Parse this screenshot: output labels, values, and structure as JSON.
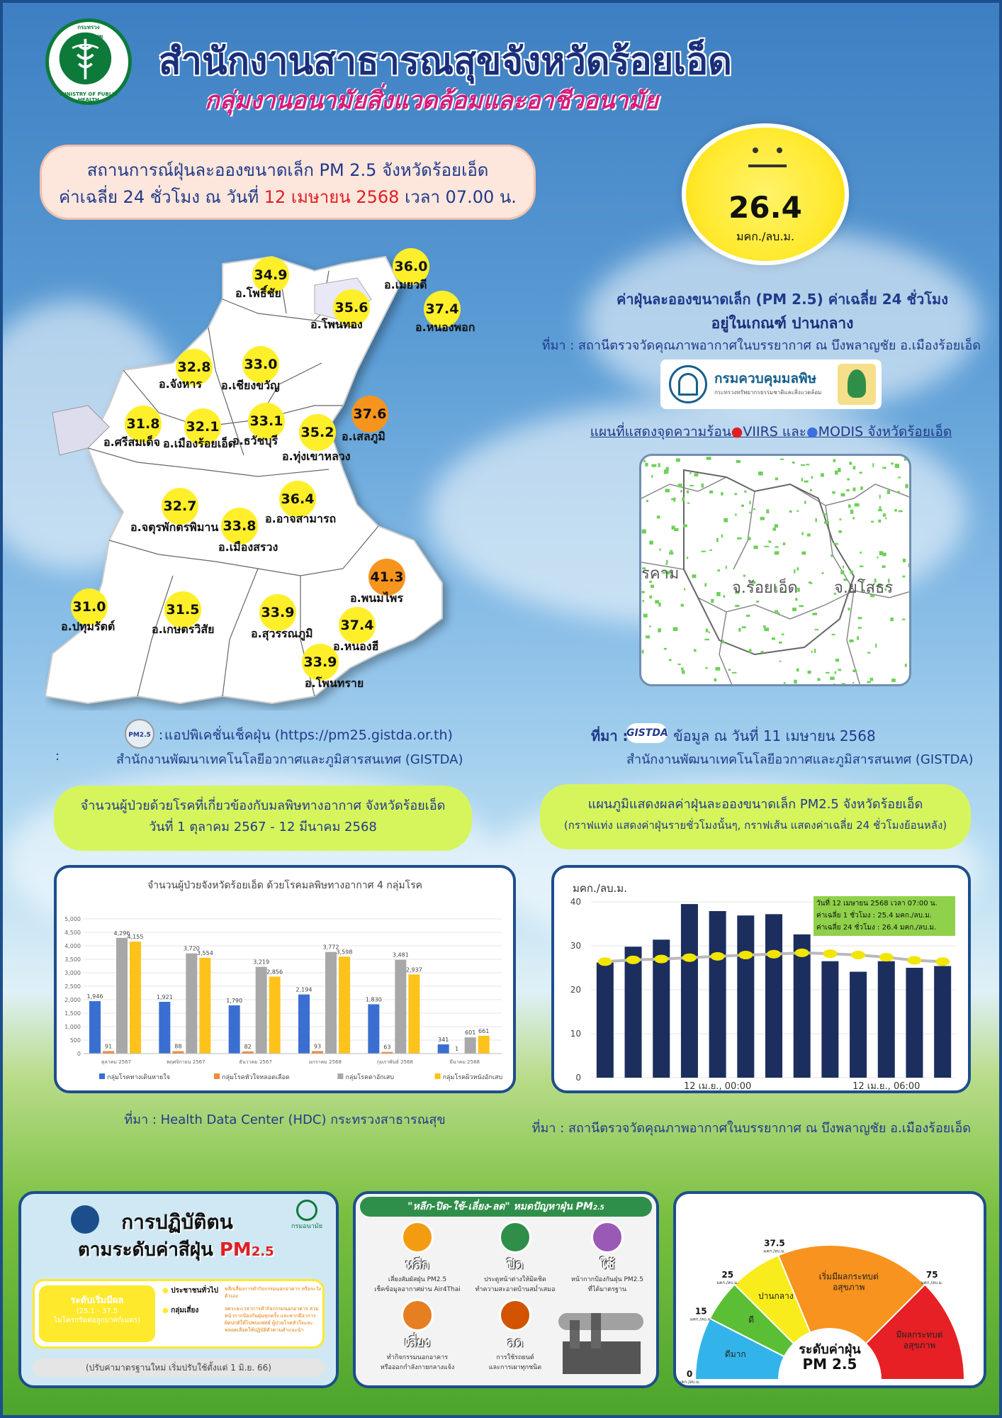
{
  "header": {
    "title": "สำนักงานสาธารณสุขจังหวัดร้อยเอ็ด",
    "subtitle": "กลุ่มงานอนามัยสิ่งแวดล้อมและอาชีวอนามัย",
    "logo_text_top": "กระทรวงสาธารณสุข",
    "logo_text_bottom": "MINISTRY OF PUBLIC HEALTH"
  },
  "status": {
    "line1": "สถานการณ์ฝุ่นละอองขนาดเล็ก PM 2.5 จังหวัดร้อยเอ็ด",
    "line2_pre": "ค่าเฉลี่ย 24 ชั่วโมง ณ วันที่ ",
    "line2_date": "12 เมษายน 2568",
    "line2_post": " เวลา 07.00 น."
  },
  "aqi": {
    "value": "26.4",
    "unit": "มคก./ลบ.ม.",
    "color": "#ffe92d"
  },
  "aqi_info": {
    "line1": "ค่าฝุ่นละอองขนาดเล็ก (PM 2.5) ค่าเฉลี่ย 24 ชั่วโมง",
    "line2": "อยู่ในเกณฑ์ ปานกลาง",
    "source": "ที่มา : สถานีตรวจวัดคุณภาพอากาศในบรรยากาศ ณ บึงพลาญชัย อ.เมืองร้อยเอ็ด",
    "pcd_name": "กรมควบคุมมลพิษ",
    "pcd_sub": "กระทรวงทรัพยากรธรรมชาติและสิ่งแวดล้อม",
    "pcd_logo_text": "กรมควบคุมมลพิษ"
  },
  "hotspot": {
    "title_pre": "แผนที่แสดงจุดความร้อน",
    "viirs": "VIIRS",
    "and": " และ",
    "modis": "MODIS",
    "title_post": " จังหวัดร้อยเอ็ด",
    "label_center": "จ.ร้อยเอ็ด",
    "label_right": "จ.ยโสธร",
    "label_left": "รคาม",
    "source_label": "ที่มา :",
    "source_logo": "GISTDA",
    "source_line1": "ข้อมูล ณ วันที่ 11 เมษายน 2568",
    "source_line2": "สำนักงานพัฒนาเทคโนโลยีอวกาศและภูมิสารสนเทศ (GISTDA)"
  },
  "map": {
    "districts": [
      {
        "value": "34.9",
        "name": "อ.โพธิ์ชัย",
        "level": "yellow"
      },
      {
        "value": "36.0",
        "name": "อ.เมยวดี",
        "level": "yellow"
      },
      {
        "value": "35.6",
        "name": "อ.โพนทอง",
        "level": "yellow"
      },
      {
        "value": "37.4",
        "name": "อ.หนองพอก",
        "level": "yellow"
      },
      {
        "value": "32.8",
        "name": "อ.จังหาร",
        "level": "yellow"
      },
      {
        "value": "33.0",
        "name": "อ.เชียงขวัญ",
        "level": "yellow"
      },
      {
        "value": "31.8",
        "name": "อ.ศรีสมเด็จ",
        "level": "yellow"
      },
      {
        "value": "32.1",
        "name": "อ.เมืองร้อยเอ็ด",
        "level": "yellow"
      },
      {
        "value": "33.1",
        "name": "อ.ธวัชบุรี",
        "level": "yellow"
      },
      {
        "value": "35.2",
        "name": "อ.ทุ่งเขาหลวง",
        "level": "yellow"
      },
      {
        "value": "37.6",
        "name": "อ.เสลภูมิ",
        "level": "orange"
      },
      {
        "value": "36.4",
        "name": "อ.อาจสามารถ",
        "level": "yellow"
      },
      {
        "value": "32.7",
        "name": "อ.จตุรพักตรพิมาน",
        "level": "yellow"
      },
      {
        "value": "33.8",
        "name": "อ.เมืองสรวง",
        "level": "yellow"
      },
      {
        "value": "41.3",
        "name": "อ.พนมไพร",
        "level": "orange"
      },
      {
        "value": "31.0",
        "name": "อ.ปทุมรัตต์",
        "level": "yellow"
      },
      {
        "value": "31.5",
        "name": "อ.เกษตรวิสัย",
        "level": "yellow"
      },
      {
        "value": "33.9",
        "name": "อ.สุวรรณภูมิ",
        "level": "yellow"
      },
      {
        "value": "37.4",
        "name": "อ.หนองฮี",
        "level": "yellow"
      },
      {
        "value": "33.9",
        "name": "อ.โพนทราย",
        "level": "yellow"
      }
    ],
    "source_label": "ที่มา :",
    "source_app": "แอปพิเคชั่นเช็คฝุ่น (https://pm25.gistda.or.th)",
    "source_org": "สำนักงานพัฒนาเทคโนโลยีอวกาศและภูมิสารสนเทศ (GISTDA)",
    "app_icon_text": "PM2.5",
    "colon": ":"
  },
  "patients_box": {
    "line1": "จำนวนผู้ป่วยด้วยโรคที่เกี่ยวข้องกับมลพิษทางอากาศ จังหวัดร้อยเอ็ด",
    "line2": "วันที่ 1 ตุลาคม 2567 - 12 มีนาคม 2568",
    "source": "ที่มา :  Health Data Center (HDC) กระทรวงสาธารณสุข"
  },
  "pm_box": {
    "line1": "แผนภูมิแสดงผลค่าฝุ่นละอองขนาดเล็ก PM2.5 จังหวัดร้อยเอ็ด",
    "line2": "(กราฟแท่ง แสดงค่าฝุ่นรายชั่วโมงนั้นๆ, กราฟเส้น แสดงค่าเฉลี่ย 24 ชั่วโมงย้อนหลัง)",
    "source": "ที่มา : สถานีตรวจวัดคุณภาพอากาศในบรรยากาศ ณ บึงพลาญชัย อ.เมืองร้อยเอ็ด"
  },
  "chart_data": [
    {
      "type": "bar",
      "title": "จำนวนผู้ป่วยจังหวัดร้อยเอ็ด ด้วยโรคมลพิษทางอากาศ 4 กลุ่มโรค",
      "categories": [
        "ตุลาคม 2567",
        "พฤศจิกายน 2567",
        "ธันวาคม 2567",
        "มกราคม 2568",
        "กุมภาพันธ์ 2568",
        "มีนาคม 2568"
      ],
      "ylim": [
        0,
        5000
      ],
      "yticks": [
        "0",
        "500",
        "1,000",
        "1,500",
        "2,000",
        "2,500",
        "3,000",
        "3,500",
        "4,000",
        "4,500",
        "5,000"
      ],
      "series": [
        {
          "name": "กลุ่มโรคทางเดินหายใจ",
          "color": "#3a6fd1",
          "values": [
            1946,
            1921,
            1790,
            2194,
            1830,
            341
          ],
          "labels": [
            "1,946",
            "1,921",
            "1,790",
            "2,194",
            "1,830",
            "341"
          ]
        },
        {
          "name": "กลุ่มโรคหัวใจหลอดเลือด",
          "color": "#f08a3c",
          "values": [
            91,
            88,
            82,
            93,
            63,
            1
          ],
          "labels": [
            "91",
            "88",
            "82",
            "93",
            "63",
            "1"
          ]
        },
        {
          "name": "กลุ่มโรคตาอักเสบ",
          "color": "#a8a8a8",
          "values": [
            4296,
            3720,
            3219,
            3772,
            3481,
            601
          ],
          "labels": [
            "4,296",
            "3,720",
            "3,219",
            "3,772",
            "3,481",
            "601"
          ]
        },
        {
          "name": "กลุ่มโรคผิวหนังอักเสบ",
          "color": "#ffc21a",
          "values": [
            4155,
            3554,
            2856,
            3598,
            2937,
            661
          ],
          "labels": [
            "4,155",
            "3,554",
            "2,856",
            "3,598",
            "2,937",
            "661"
          ]
        }
      ],
      "legend": "bottom"
    },
    {
      "type": "bar",
      "ylabel": "มคก./ลบ.ม.",
      "ylim": [
        0,
        40
      ],
      "yticks": [
        "0",
        "10",
        "20",
        "30",
        "40"
      ],
      "xtick_labels": [
        "12 เม.ย., 00:00",
        "12 เม.ย., 06:00"
      ],
      "hourly": [
        26.2,
        29.8,
        31.4,
        39.5,
        37.9,
        36.9,
        37.2,
        32.6,
        26.5,
        24.1,
        26.5,
        25.0,
        25.4
      ],
      "avg24": [
        26.4,
        26.8,
        27.0,
        27.3,
        27.6,
        27.9,
        28.1,
        28.4,
        28.2,
        27.9,
        27.4,
        26.7,
        26.4
      ],
      "bar_color": "#1c2e5e",
      "line_color": "#b9b9b9",
      "marker_color": "#f2e500",
      "info": {
        "date": "วันที่  12 เมษายน  2568  เวลา 07:00 น.",
        "avg1": "ค่าเฉลี่ย 1 ชั่วโมง     :  25.4 มคก./ลบ.ม.",
        "avg24": "ค่าเฉลี่ย 24 ชั่วโมง :  26.4 มคก./ลบ.ม."
      }
    },
    {
      "type": "pie",
      "title": "ระดับค่าฝุ่น",
      "subtitle": "PM 2.5",
      "slices": [
        {
          "label": "ดีมาก",
          "from": 0,
          "to": 15,
          "color": "#32b4ea"
        },
        {
          "label": "ดี",
          "from": 15,
          "to": 25,
          "color": "#5bbf35"
        },
        {
          "label": "ปานกลาง",
          "from": 25,
          "to": 37.5,
          "color": "#f8ec1c"
        },
        {
          "label": "เริ่มมีผลกระทบต่อสุขภาพ",
          "from": 37.5,
          "to": 75,
          "color": "#f7931e"
        },
        {
          "label": "มีผลกระทบต่อสุขภาพ",
          "from": 75,
          "to": 100,
          "color": "#e62024"
        }
      ],
      "tick_labels": [
        {
          "value": "0",
          "unit": "มคก./ลบ.ม."
        },
        {
          "value": "15",
          "unit": "มคก./ลบ.ม."
        },
        {
          "value": "25",
          "unit": "มคก./ลบ.ม."
        },
        {
          "value": "37.5",
          "unit": "มคก./ลบ.ม."
        },
        {
          "value": "75",
          "unit": "มคก./ลบ.ม."
        }
      ]
    }
  ],
  "practice_panel": {
    "title1": "การปฏิบัติตน",
    "title2": "ตามระดับค่าสีฝุ่น",
    "title_pm": "PM",
    "title_sub": "2.5",
    "level_name": "ระดับเริ่มมีผล",
    "level_range": "(25.1 - 37.5",
    "level_note": "ไมโครกรัมต่อลูกบาศก์เมตร)",
    "group1": "ประชาชนทั่วไป",
    "group1_text": "หลีกเลี่ยงการทำกิจกรรมนอกอาคาร หรือระวังตัวเอง",
    "group2": "กลุ่มเสี่ยง",
    "group2_text": "ลดระยะเวลาการทำกิจกรรมนอกอาคาร สวมหน้ากากป้องกันฝุ่นทุกครั้ง และหากมีอาการผิดปกติให้ไปพบแพทย์ ผู้ป่วยโรคหัวใจและหลอดเลือดให้ปฏิบัติตัวตามคำแนะนำ",
    "footer": "(ปรับค่ามาตรฐานใหม่ เริ่มปรับใช้ตั้งแต่ 1 มิ.ย. 66)",
    "ministry": "กรมอนามัย"
  },
  "tips_panel": {
    "title": "\"หลีก-ปิด-ใช้-เลี่ยง-ลด\" หมดปัญหาฝุ่น PM",
    "title_sub": "2.5",
    "items": [
      {
        "head": "หลีก",
        "text1": "เลี่ยงสัมผัสฝุ่น PM2.5",
        "text2": "เช็คข้อมูลอากาศผ่าน Air4Thai"
      },
      {
        "head": "ปิด",
        "text1": "ประตูหน้าต่างให้มิดชิด",
        "text2": "ทำความสะอาดบ้านสม่ำเสมอ"
      },
      {
        "head": "ใช้",
        "text1": "หน้ากากป้องกันฝุ่น PM2.5",
        "text2": "ที่ได้มาตรฐาน"
      },
      {
        "head": "เลี่ยง",
        "text1": "ทำกิจกรรมนอกอาคาร",
        "text2": "หรือออกกำลังกายกลางแจ้ง"
      },
      {
        "head": "ลด",
        "text1": "การใช้รถยนต์",
        "text2": "และการเผาทุกชนิด"
      }
    ]
  }
}
